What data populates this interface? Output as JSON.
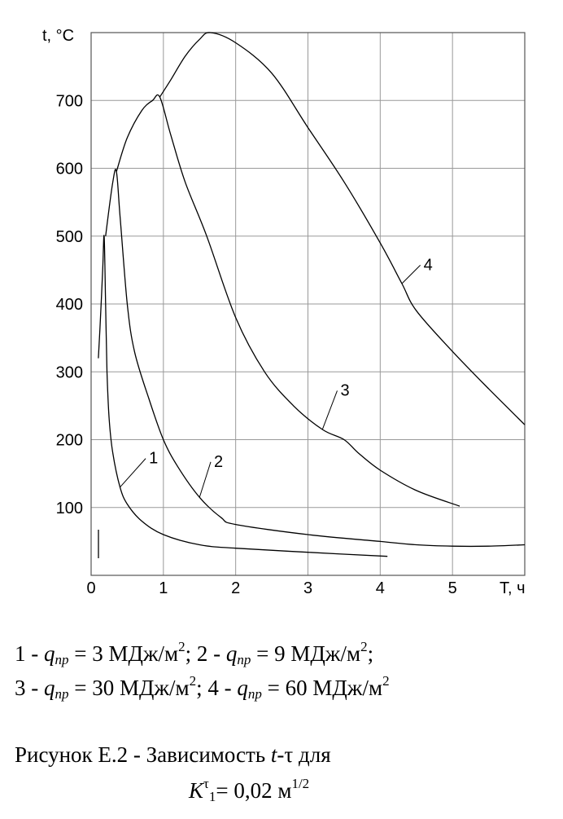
{
  "chart_data": {
    "type": "line",
    "title": "",
    "ylabel": "t, °C",
    "xlabel": "Т, ч",
    "xlim": [
      0,
      6
    ],
    "ylim": [
      0,
      800
    ],
    "x_ticks": [
      "0",
      "1",
      "2",
      "3",
      "4",
      "5"
    ],
    "y_ticks": [
      "100",
      "200",
      "300",
      "400",
      "500",
      "600",
      "700"
    ],
    "grid": true,
    "series": [
      {
        "name": "1",
        "label_at": [
          0.8,
          165
        ],
        "x": [
          0.1,
          0.13,
          0.16,
          0.18,
          0.2,
          0.22,
          0.25,
          0.3,
          0.4,
          0.5,
          0.7,
          1.0,
          1.5,
          2.0,
          3.0,
          4.1
        ],
        "y": [
          320,
          380,
          450,
          500,
          400,
          300,
          230,
          180,
          130,
          105,
          80,
          60,
          45,
          40,
          34,
          28
        ]
      },
      {
        "name": "2",
        "label_at": [
          1.7,
          160
        ],
        "x": [
          0.2,
          0.3,
          0.35,
          0.4,
          0.5,
          0.6,
          0.8,
          1.0,
          1.2,
          1.5,
          1.8,
          2.0,
          3.0,
          4.0,
          4.5,
          5.0,
          5.5,
          6.0
        ],
        "y": [
          500,
          580,
          595,
          530,
          400,
          330,
          260,
          200,
          160,
          115,
          85,
          75,
          60,
          50,
          45,
          43,
          43,
          45
        ]
      },
      {
        "name": "3",
        "label_at": [
          3.45,
          265
        ],
        "x": [
          0.35,
          0.5,
          0.7,
          0.85,
          0.95,
          1.1,
          1.3,
          1.6,
          2.0,
          2.4,
          2.8,
          3.2,
          3.5,
          3.7,
          4.0,
          4.5,
          5.1
        ],
        "y": [
          595,
          645,
          685,
          700,
          705,
          650,
          580,
          500,
          380,
          300,
          250,
          215,
          200,
          180,
          155,
          125,
          102
        ]
      },
      {
        "name": "4",
        "label_at": [
          4.6,
          450
        ],
        "x": [
          0.95,
          1.1,
          1.3,
          1.5,
          1.65,
          2.0,
          2.5,
          3.0,
          3.5,
          4.0,
          4.3,
          4.5,
          5.0,
          5.5,
          6.0
        ],
        "y": [
          705,
          730,
          765,
          790,
          800,
          785,
          740,
          660,
          580,
          490,
          430,
          390,
          330,
          275,
          222
        ]
      }
    ]
  },
  "caption": {
    "line1": {
      "p1": "1 - ",
      "q": "q",
      "sub": "пр",
      "p2": " = 3 МДж/м",
      "sup": "2",
      "p3": "; 2 - ",
      "p4": " = 9 МДж/м",
      "p5": ";"
    },
    "line2": {
      "p1": "3 - ",
      "p2": " = 30 МДж/м",
      "p3": "; 4 - ",
      "p4": " = 60 МДж/м"
    },
    "fig": {
      "p1": "Рисунок Е.2   -  Зависимость ",
      "t": "t",
      "p2": "-τ для",
      "K": "K",
      "tau": "τ",
      "one": "1",
      "p3": "= 0,02 м",
      "sup": "1/2"
    }
  }
}
